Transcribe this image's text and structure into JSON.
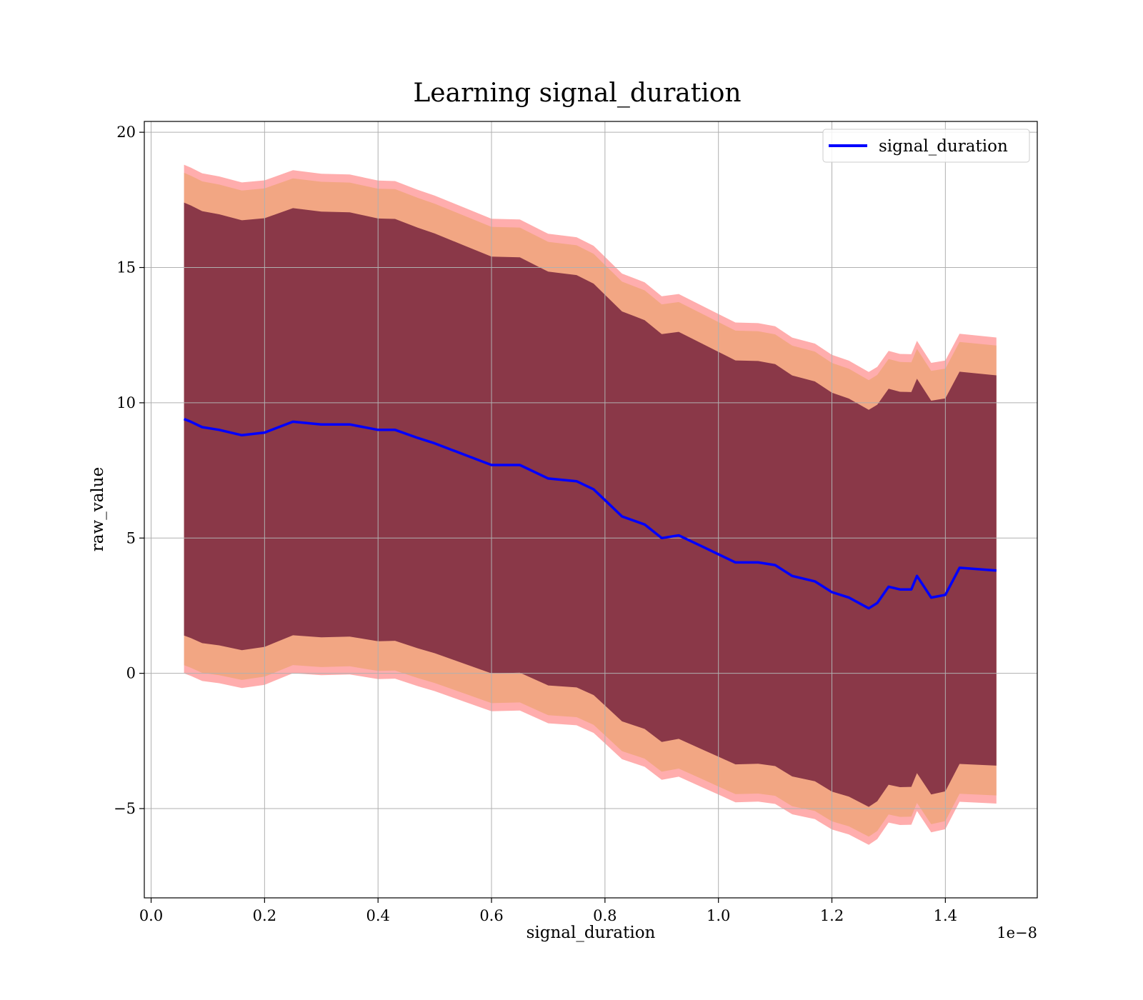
{
  "chart_data": {
    "type": "line",
    "title": "Learning signal_duration",
    "xlabel": "signal_duration",
    "ylabel": "raw_value",
    "x_offset_label": "1e−8",
    "xlim": [
      -0.012,
      1.562
    ],
    "ylim": [
      -8.3,
      20.4
    ],
    "x_ticks": [
      0.0,
      0.2,
      0.4,
      0.6,
      0.8,
      1.0,
      1.2,
      1.4
    ],
    "x_tick_labels": [
      "0.0",
      "0.2",
      "0.4",
      "0.6",
      "0.8",
      "1.0",
      "1.2",
      "1.4"
    ],
    "y_ticks": [
      -5,
      0,
      5,
      10,
      15,
      20
    ],
    "y_tick_labels": [
      "−5",
      "0",
      "5",
      "10",
      "15",
      "20"
    ],
    "grid": true,
    "legend_position": "top-right",
    "colors": {
      "line": "#0000ff",
      "band_outer": "#ff0000",
      "band_middle": "#e8a060",
      "band_inner": "#7b2940"
    },
    "series": [
      {
        "name": "signal_duration",
        "x": [
          0.058,
          0.07,
          0.09,
          0.12,
          0.16,
          0.2,
          0.25,
          0.3,
          0.35,
          0.4,
          0.43,
          0.47,
          0.5,
          0.55,
          0.6,
          0.65,
          0.7,
          0.75,
          0.78,
          0.8,
          0.83,
          0.87,
          0.9,
          0.93,
          0.97,
          1.0,
          1.03,
          1.07,
          1.1,
          1.13,
          1.17,
          1.2,
          1.23,
          1.265,
          1.28,
          1.3,
          1.32,
          1.34,
          1.35,
          1.375,
          1.4,
          1.425,
          1.49
        ],
        "y": [
          9.4,
          9.3,
          9.1,
          9.0,
          8.8,
          8.9,
          9.3,
          9.2,
          9.2,
          9.0,
          9.0,
          8.7,
          8.5,
          8.1,
          7.7,
          7.7,
          7.2,
          7.1,
          6.8,
          6.4,
          5.8,
          5.5,
          5.0,
          5.1,
          4.7,
          4.4,
          4.1,
          4.1,
          4.0,
          3.6,
          3.4,
          3.0,
          2.8,
          2.4,
          2.6,
          3.2,
          3.1,
          3.1,
          3.6,
          2.8,
          2.9,
          3.9,
          3.8
        ]
      }
    ]
  }
}
